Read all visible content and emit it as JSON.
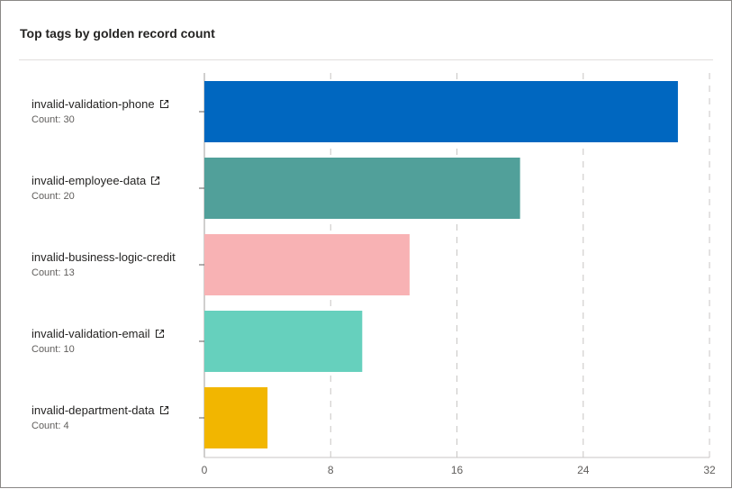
{
  "card": {
    "title": "Top tags by golden record count"
  },
  "icons": {
    "external": "external-link-icon"
  },
  "rows": [
    {
      "name": "invalid-validation-phone",
      "count_label": "Count: 30",
      "show_icon": true
    },
    {
      "name": "invalid-employee-data",
      "count_label": "Count: 20",
      "show_icon": true
    },
    {
      "name": "invalid-business-logic-credit",
      "count_label": "Count: 13",
      "show_icon": true
    },
    {
      "name": "invalid-validation-email",
      "count_label": "Count: 10",
      "show_icon": true
    },
    {
      "name": "invalid-department-data",
      "count_label": "Count: 4",
      "show_icon": true
    }
  ],
  "chart_data": {
    "type": "bar",
    "orientation": "horizontal",
    "categories": [
      "invalid-validation-phone",
      "invalid-employee-data",
      "invalid-business-logic-credit",
      "invalid-validation-email",
      "invalid-department-data"
    ],
    "values": [
      30,
      20,
      13,
      10,
      4
    ],
    "colors": [
      "#0067c0",
      "#51a09a",
      "#f8b2b4",
      "#66d0bd",
      "#f2b600"
    ],
    "xlim": [
      0,
      32
    ],
    "xticks": [
      0,
      8,
      16,
      24,
      32
    ],
    "title": "Top tags by golden record count",
    "xlabel": "",
    "ylabel": "",
    "grid": "vertical-dashed"
  }
}
